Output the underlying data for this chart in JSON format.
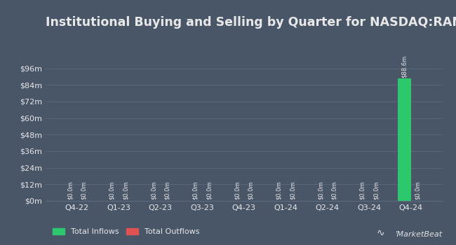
{
  "title": "Institutional Buying and Selling by Quarter for NASDAQ:RANGU",
  "quarters": [
    "Q4-22",
    "Q1-23",
    "Q2-23",
    "Q3-23",
    "Q4-23",
    "Q1-24",
    "Q2-24",
    "Q3-24",
    "Q4-24"
  ],
  "inflows": [
    0,
    0,
    0,
    0,
    0,
    0,
    0,
    0,
    88.6
  ],
  "outflows": [
    0,
    0,
    0,
    0,
    0,
    0,
    0,
    0,
    0
  ],
  "inflow_color": "#2dc76d",
  "outflow_color": "#e05252",
  "background_color": "#495668",
  "plot_bg_color": "#495668",
  "text_color": "#e8e8e8",
  "grid_color": "#5c6b7d",
  "bar_width": 0.32,
  "ylim": [
    0,
    110
  ],
  "yticks": [
    0,
    12,
    24,
    36,
    48,
    60,
    72,
    84,
    96
  ],
  "ytick_labels": [
    "$0m",
    "$12m",
    "$24m",
    "$36m",
    "$48m",
    "$60m",
    "$72m",
    "$84m",
    "$96m"
  ],
  "legend_inflow": "Total Inflows",
  "legend_outflow": "Total Outflows",
  "bar_label_fontsize": 6.0,
  "annotation_88": "$88.6m",
  "annotation_zero": "$0.0m",
  "title_fontsize": 12.5,
  "axis_label_fontsize": 8.0,
  "tick_label_fontsize": 8.0
}
